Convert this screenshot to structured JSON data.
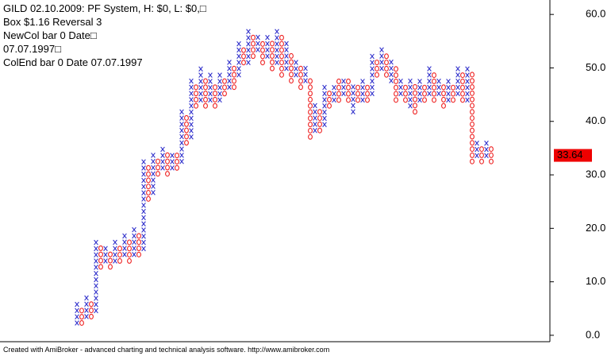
{
  "chart_data": {
    "type": "point-and-figure",
    "title_lines": [
      "GILD 02.10.2009: PF System, H: $0, L: $0,□",
      "Box $1.16 Reversal 3",
      "NewCol bar 0 Date□",
      "07.07.1997□",
      "ColEnd bar 0 Date 07.07.1997"
    ],
    "box_size": 1.16,
    "x_color": "#3333cc",
    "o_color": "#ee2222",
    "columns": [
      {
        "type": "x",
        "low": 2.3,
        "high": 6.0
      },
      {
        "type": "o",
        "low": 2.3,
        "high": 4.6
      },
      {
        "type": "x",
        "low": 3.5,
        "high": 7.0
      },
      {
        "type": "o",
        "low": 3.5,
        "high": 5.8
      },
      {
        "type": "x",
        "low": 4.6,
        "high": 17.4
      },
      {
        "type": "o",
        "low": 12.8,
        "high": 16.2
      },
      {
        "type": "x",
        "low": 13.9,
        "high": 16.2
      },
      {
        "type": "o",
        "low": 12.8,
        "high": 15.1
      },
      {
        "type": "x",
        "low": 13.9,
        "high": 17.4
      },
      {
        "type": "o",
        "low": 13.9,
        "high": 16.2
      },
      {
        "type": "x",
        "low": 15.1,
        "high": 18.6
      },
      {
        "type": "o",
        "low": 13.9,
        "high": 17.4
      },
      {
        "type": "x",
        "low": 15.1,
        "high": 19.7
      },
      {
        "type": "o",
        "low": 15.1,
        "high": 18.6
      },
      {
        "type": "x",
        "low": 16.2,
        "high": 32.5
      },
      {
        "type": "o",
        "low": 25.5,
        "high": 31.3
      },
      {
        "type": "x",
        "low": 26.7,
        "high": 33.6
      },
      {
        "type": "o",
        "low": 30.2,
        "high": 32.5
      },
      {
        "type": "x",
        "low": 31.3,
        "high": 34.8
      },
      {
        "type": "o",
        "low": 30.2,
        "high": 33.6
      },
      {
        "type": "x",
        "low": 31.3,
        "high": 33.6
      },
      {
        "type": "o",
        "low": 31.3,
        "high": 33.6
      },
      {
        "type": "x",
        "low": 32.5,
        "high": 41.8
      },
      {
        "type": "o",
        "low": 36.0,
        "high": 40.6
      },
      {
        "type": "x",
        "low": 37.1,
        "high": 47.6
      },
      {
        "type": "o",
        "low": 42.9,
        "high": 46.4
      },
      {
        "type": "x",
        "low": 44.0,
        "high": 49.9
      },
      {
        "type": "o",
        "low": 42.9,
        "high": 47.6
      },
      {
        "type": "x",
        "low": 44.0,
        "high": 48.7
      },
      {
        "type": "o",
        "low": 42.9,
        "high": 46.4
      },
      {
        "type": "x",
        "low": 44.0,
        "high": 48.7
      },
      {
        "type": "o",
        "low": 45.2,
        "high": 47.6
      },
      {
        "type": "x",
        "low": 46.4,
        "high": 51.0
      },
      {
        "type": "o",
        "low": 46.4,
        "high": 49.9
      },
      {
        "type": "x",
        "low": 48.7,
        "high": 54.5
      },
      {
        "type": "o",
        "low": 51.0,
        "high": 53.4
      },
      {
        "type": "x",
        "low": 51.0,
        "high": 56.8
      },
      {
        "type": "o",
        "low": 52.2,
        "high": 55.7
      },
      {
        "type": "x",
        "low": 53.4,
        "high": 55.7
      },
      {
        "type": "o",
        "low": 51.0,
        "high": 54.5
      },
      {
        "type": "x",
        "low": 52.2,
        "high": 55.7
      },
      {
        "type": "o",
        "low": 49.9,
        "high": 54.5
      },
      {
        "type": "x",
        "low": 51.0,
        "high": 56.8
      },
      {
        "type": "o",
        "low": 48.7,
        "high": 55.7
      },
      {
        "type": "x",
        "low": 49.9,
        "high": 54.5
      },
      {
        "type": "o",
        "low": 47.6,
        "high": 52.2
      },
      {
        "type": "x",
        "low": 48.7,
        "high": 51.0
      },
      {
        "type": "o",
        "low": 46.4,
        "high": 49.9
      },
      {
        "type": "x",
        "low": 47.6,
        "high": 49.9
      },
      {
        "type": "o",
        "low": 37.1,
        "high": 47.6
      },
      {
        "type": "x",
        "low": 38.3,
        "high": 43.0
      },
      {
        "type": "o",
        "low": 38.3,
        "high": 41.8
      },
      {
        "type": "x",
        "low": 39.4,
        "high": 46.4
      },
      {
        "type": "o",
        "low": 42.9,
        "high": 45.2
      },
      {
        "type": "x",
        "low": 44.0,
        "high": 46.4
      },
      {
        "type": "o",
        "low": 44.0,
        "high": 47.6
      },
      {
        "type": "x",
        "low": 45.2,
        "high": 47.6
      },
      {
        "type": "o",
        "low": 44.0,
        "high": 47.6
      },
      {
        "type": "x",
        "low": 41.8,
        "high": 46.4
      },
      {
        "type": "o",
        "low": 44.0,
        "high": 46.4
      },
      {
        "type": "x",
        "low": 44.0,
        "high": 47.6
      },
      {
        "type": "o",
        "low": 44.0,
        "high": 46.4
      },
      {
        "type": "x",
        "low": 45.2,
        "high": 52.2
      },
      {
        "type": "o",
        "low": 48.7,
        "high": 51.0
      },
      {
        "type": "x",
        "low": 49.9,
        "high": 53.4
      },
      {
        "type": "o",
        "low": 48.7,
        "high": 52.2
      },
      {
        "type": "x",
        "low": 47.6,
        "high": 51.0
      },
      {
        "type": "o",
        "low": 44.0,
        "high": 49.9
      },
      {
        "type": "x",
        "low": 45.2,
        "high": 47.6
      },
      {
        "type": "o",
        "low": 44.0,
        "high": 46.4
      },
      {
        "type": "x",
        "low": 42.9,
        "high": 47.6
      },
      {
        "type": "o",
        "low": 41.8,
        "high": 46.4
      },
      {
        "type": "x",
        "low": 44.0,
        "high": 47.6
      },
      {
        "type": "o",
        "low": 44.0,
        "high": 46.4
      },
      {
        "type": "x",
        "low": 45.2,
        "high": 49.9
      },
      {
        "type": "o",
        "low": 44.0,
        "high": 48.7
      },
      {
        "type": "x",
        "low": 45.2,
        "high": 47.6
      },
      {
        "type": "o",
        "low": 42.9,
        "high": 46.4
      },
      {
        "type": "x",
        "low": 44.0,
        "high": 47.6
      },
      {
        "type": "o",
        "low": 44.0,
        "high": 46.4
      },
      {
        "type": "x",
        "low": 45.2,
        "high": 49.9
      },
      {
        "type": "o",
        "low": 44.0,
        "high": 48.7
      },
      {
        "type": "x",
        "low": 44.0,
        "high": 49.9
      },
      {
        "type": "o",
        "low": 32.5,
        "high": 48.7
      },
      {
        "type": "x",
        "low": 33.6,
        "high": 35.9
      },
      {
        "type": "o",
        "low": 32.5,
        "high": 34.8
      },
      {
        "type": "x",
        "low": 33.6,
        "high": 35.9
      },
      {
        "type": "o",
        "low": 32.5,
        "high": 34.8
      }
    ],
    "ylim": [
      -1.2,
      62.7
    ],
    "yticks": [
      {
        "value": 0,
        "label": "0.0"
      },
      {
        "value": 10,
        "label": "10.0"
      },
      {
        "value": 20,
        "label": "20.0"
      },
      {
        "value": 30,
        "label": "30.0"
      },
      {
        "value": 40,
        "label": "40.0"
      },
      {
        "value": 50,
        "label": "50.0"
      },
      {
        "value": 60,
        "label": "60.0"
      }
    ],
    "last_value": 33.64,
    "footer": "Created with AmiBroker - advanced charting and technical analysis software. http://www.amibroker.com"
  }
}
